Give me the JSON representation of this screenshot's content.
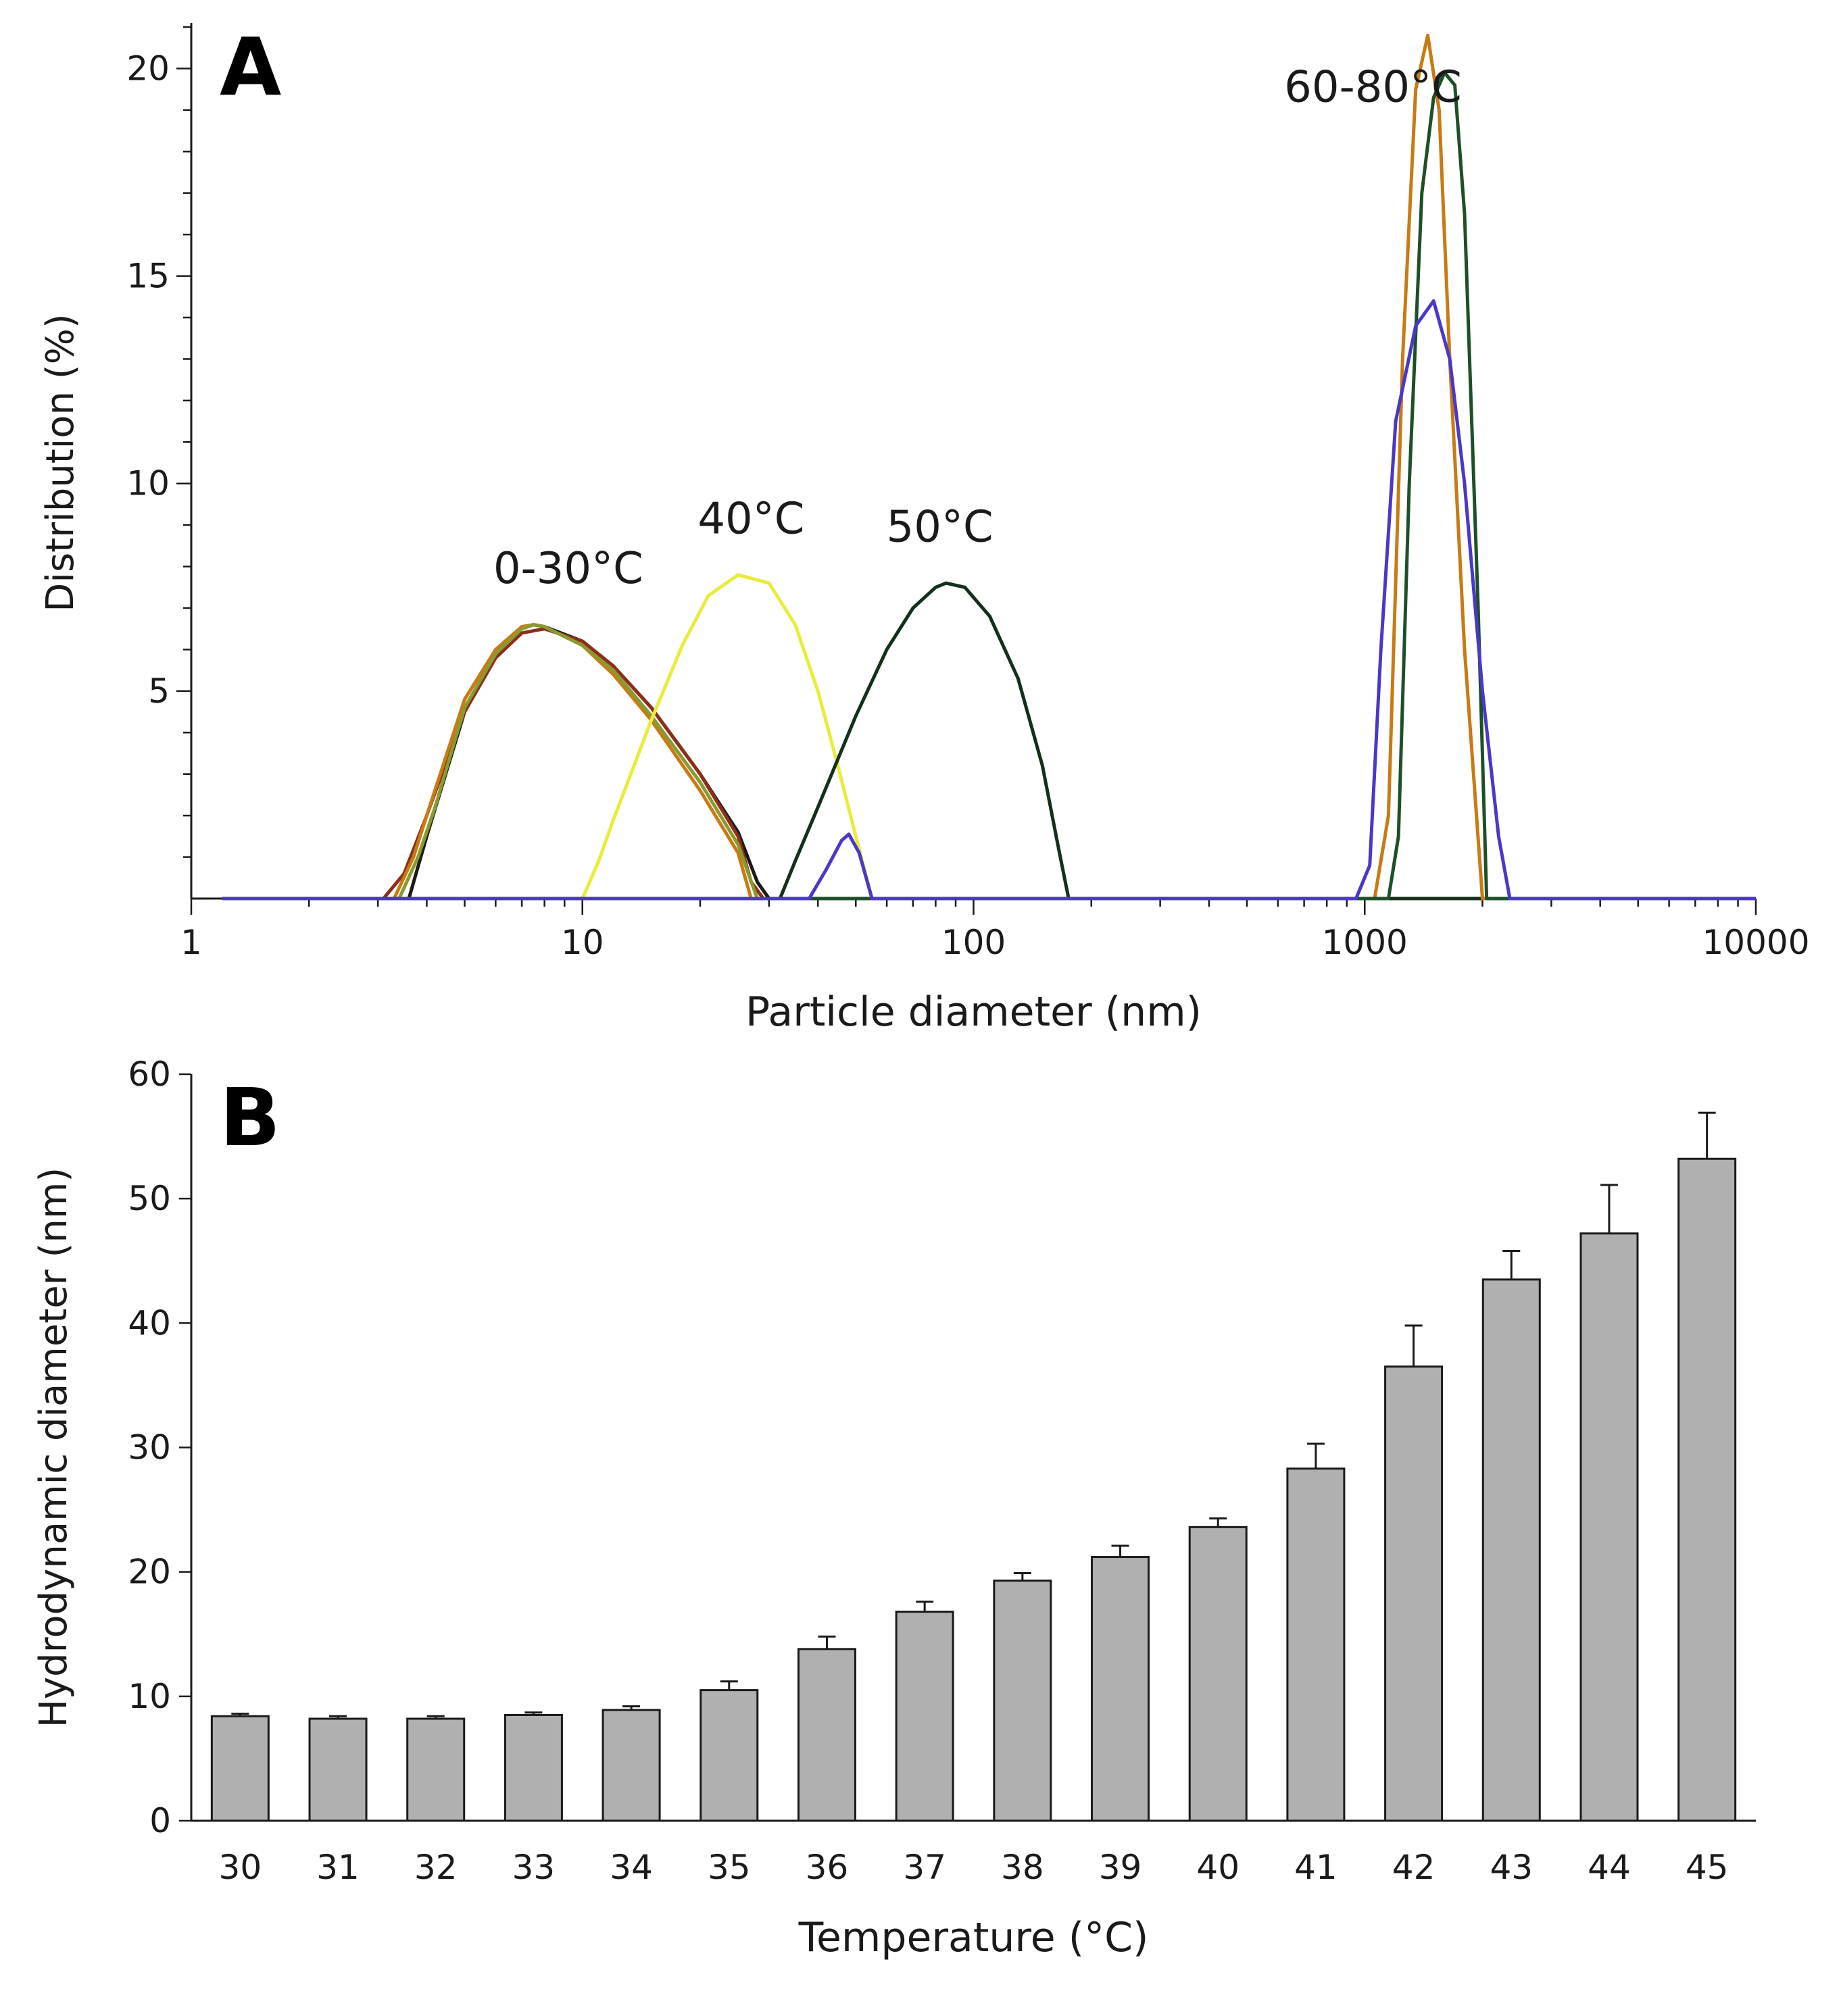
{
  "chart_data": [
    {
      "panel_letter": "A",
      "type": "line",
      "xscale": "log",
      "xlabel": "Particle diameter (nm)",
      "ylabel": "Distribution (%)",
      "xlim": [
        1,
        10000
      ],
      "ylim": [
        0,
        21
      ],
      "xticks": [
        "1",
        "10",
        "100",
        "1000",
        "10000"
      ],
      "yticks": [
        "5",
        "10",
        "15",
        "20"
      ],
      "annotations": [
        {
          "text": "0-30°C",
          "x": 9.2,
          "y": 7.6
        },
        {
          "text": "40°C",
          "x": 27,
          "y": 8.8
        },
        {
          "text": "50°C",
          "x": 82,
          "y": 8.6
        },
        {
          "text": "60-80°C",
          "x": 1050,
          "y": 19.2
        }
      ],
      "series": [
        {
          "name": "0-30°C (black)",
          "color": "#1a1a1a",
          "points": [
            [
              1.2,
              0
            ],
            [
              3.6,
              0
            ],
            [
              4,
              1.5
            ],
            [
              5,
              4.5
            ],
            [
              6,
              5.9
            ],
            [
              7,
              6.5
            ],
            [
              7.5,
              6.6
            ],
            [
              8,
              6.55
            ],
            [
              10,
              6.2
            ],
            [
              12,
              5.6
            ],
            [
              15,
              4.6
            ],
            [
              20,
              3.0
            ],
            [
              25,
              1.6
            ],
            [
              28,
              0.4
            ],
            [
              30,
              0
            ],
            [
              10000,
              0
            ]
          ]
        },
        {
          "name": "0-30°C (red-brown)",
          "color": "#8b2f1a",
          "points": [
            [
              1.2,
              0
            ],
            [
              3.1,
              0
            ],
            [
              3.5,
              0.6
            ],
            [
              4,
              2
            ],
            [
              5,
              4.5
            ],
            [
              6,
              5.8
            ],
            [
              7,
              6.4
            ],
            [
              8,
              6.5
            ],
            [
              10,
              6.2
            ],
            [
              12,
              5.6
            ],
            [
              15,
              4.6
            ],
            [
              20,
              3.0
            ],
            [
              25,
              1.5
            ],
            [
              27,
              0.4
            ],
            [
              29,
              0
            ],
            [
              10000,
              0
            ]
          ]
        },
        {
          "name": "0-30°C (orange)",
          "color": "#c87a14",
          "points": [
            [
              1.2,
              0
            ],
            [
              3.3,
              0
            ],
            [
              3.7,
              1
            ],
            [
              4,
              2
            ],
            [
              5,
              4.8
            ],
            [
              6,
              6.0
            ],
            [
              7,
              6.55
            ],
            [
              7.5,
              6.6
            ],
            [
              8,
              6.55
            ],
            [
              10,
              6.1
            ],
            [
              12,
              5.4
            ],
            [
              15,
              4.3
            ],
            [
              20,
              2.6
            ],
            [
              25,
              1.1
            ],
            [
              27,
              0
            ],
            [
              10000,
              0
            ]
          ]
        },
        {
          "name": "0-30°C (olive)",
          "color": "#8a9a30",
          "points": [
            [
              1.2,
              0
            ],
            [
              3.4,
              0
            ],
            [
              3.8,
              1
            ],
            [
              4.2,
              2.2
            ],
            [
              5,
              4.6
            ],
            [
              6,
              5.9
            ],
            [
              7,
              6.5
            ],
            [
              7.5,
              6.6
            ],
            [
              8,
              6.55
            ],
            [
              10,
              6.1
            ],
            [
              12,
              5.5
            ],
            [
              15,
              4.4
            ],
            [
              20,
              2.8
            ],
            [
              25,
              1.3
            ],
            [
              28,
              0
            ],
            [
              10000,
              0
            ]
          ]
        },
        {
          "name": "40°C",
          "color": "#e8ec3a",
          "points": [
            [
              1.2,
              0
            ],
            [
              10,
              0
            ],
            [
              11,
              0.9
            ],
            [
              12,
              1.9
            ],
            [
              15,
              4.3
            ],
            [
              18,
              6.1
            ],
            [
              21,
              7.3
            ],
            [
              25,
              7.8
            ],
            [
              30,
              7.6
            ],
            [
              35,
              6.6
            ],
            [
              40,
              5.0
            ],
            [
              45,
              3.2
            ],
            [
              50,
              1.5
            ],
            [
              55,
              0
            ],
            [
              10000,
              0
            ]
          ]
        },
        {
          "name": "50°C",
          "color": "#12301a",
          "points": [
            [
              1.2,
              0
            ],
            [
              32,
              0
            ],
            [
              35,
              0.9
            ],
            [
              40,
              2.2
            ],
            [
              50,
              4.4
            ],
            [
              60,
              6.0
            ],
            [
              70,
              7.0
            ],
            [
              80,
              7.5
            ],
            [
              85,
              7.6
            ],
            [
              95,
              7.5
            ],
            [
              110,
              6.8
            ],
            [
              130,
              5.3
            ],
            [
              150,
              3.2
            ],
            [
              165,
              1.2
            ],
            [
              175,
              0
            ],
            [
              10000,
              0
            ]
          ]
        },
        {
          "name": "60-80°C (orange)",
          "color": "#c87a14",
          "points": [
            [
              1.2,
              0
            ],
            [
              1060,
              0
            ],
            [
              1150,
              2
            ],
            [
              1250,
              13
            ],
            [
              1350,
              19.5
            ],
            [
              1450,
              20.8
            ],
            [
              1550,
              19
            ],
            [
              1650,
              13
            ],
            [
              1800,
              6
            ],
            [
              2000,
              0
            ],
            [
              10000,
              0
            ]
          ]
        },
        {
          "name": "60-80°C (dark green)",
          "color": "#1e5028",
          "points": [
            [
              1.2,
              0
            ],
            [
              1150,
              0
            ],
            [
              1220,
              1.5
            ],
            [
              1300,
              10
            ],
            [
              1400,
              17
            ],
            [
              1500,
              19.3
            ],
            [
              1600,
              19.9
            ],
            [
              1700,
              19.6
            ],
            [
              1800,
              16.5
            ],
            [
              1950,
              7
            ],
            [
              2050,
              0
            ],
            [
              10000,
              0
            ]
          ]
        },
        {
          "name": "50°C+ (blue)",
          "color": "#4a38c8",
          "points": [
            [
              1.2,
              0
            ],
            [
              38,
              0
            ],
            [
              42,
              0.7
            ],
            [
              46,
              1.4
            ],
            [
              48,
              1.55
            ],
            [
              51,
              1.1
            ],
            [
              55,
              0
            ],
            [
              950,
              0
            ],
            [
              1030,
              0.8
            ],
            [
              1100,
              6
            ],
            [
              1200,
              11.5
            ],
            [
              1350,
              13.8
            ],
            [
              1500,
              14.4
            ],
            [
              1650,
              13
            ],
            [
              1800,
              10
            ],
            [
              2000,
              5
            ],
            [
              2200,
              1.5
            ],
            [
              2350,
              0
            ],
            [
              10000,
              0
            ]
          ]
        }
      ]
    },
    {
      "panel_letter": "B",
      "type": "bar",
      "xlabel": "Temperature (°C)",
      "ylabel": "Hydrodynamic diameter (nm)",
      "ylim": [
        0,
        60
      ],
      "yticks": [
        "0",
        "10",
        "20",
        "30",
        "40",
        "50",
        "60"
      ],
      "categories": [
        "30",
        "31",
        "32",
        "33",
        "34",
        "35",
        "36",
        "37",
        "38",
        "39",
        "40",
        "41",
        "42",
        "43",
        "44",
        "45"
      ],
      "values": [
        8.4,
        8.2,
        8.2,
        8.5,
        8.9,
        10.5,
        13.8,
        16.8,
        19.3,
        21.2,
        23.6,
        28.3,
        36.5,
        43.5,
        47.2,
        53.2
      ],
      "errors": [
        0.2,
        0.2,
        0.2,
        0.2,
        0.3,
        0.7,
        1.0,
        0.8,
        0.6,
        0.9,
        0.7,
        2.0,
        3.3,
        2.3,
        3.9,
        3.7
      ],
      "bar_color": "#b0b0b0"
    }
  ]
}
